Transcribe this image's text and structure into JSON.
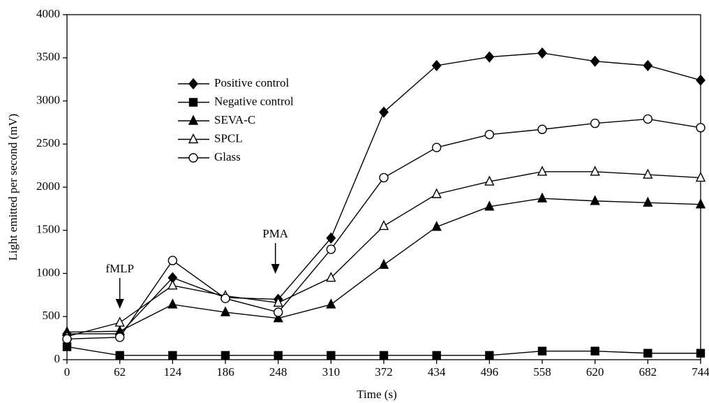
{
  "chart_data": {
    "type": "line",
    "x_label": "Time (s)",
    "y_label": "Light emitted per second (mV)",
    "x": [
      0,
      62,
      124,
      186,
      248,
      310,
      372,
      434,
      496,
      558,
      620,
      682,
      744
    ],
    "xlim": [
      0,
      744
    ],
    "xticks": [
      0,
      62,
      124,
      186,
      248,
      310,
      372,
      434,
      496,
      558,
      620,
      682,
      744
    ],
    "ylim": [
      0,
      4000
    ],
    "yticks": [
      0,
      500,
      1000,
      1500,
      2000,
      2500,
      3000,
      3500,
      4000
    ],
    "grid": false,
    "series": [
      {
        "name": "Positive control",
        "color": "#000000",
        "marker": "diamond",
        "values": [
          300,
          300,
          950,
          720,
          700,
          1410,
          2870,
          3410,
          3510,
          3555,
          3460,
          3410,
          3240
        ]
      },
      {
        "name": "Negative control",
        "color": "#000000",
        "marker": "square",
        "values": [
          150,
          50,
          50,
          50,
          50,
          50,
          50,
          50,
          50,
          100,
          100,
          75,
          75
        ]
      },
      {
        "name": "SEVA-C",
        "color": "#000000",
        "marker": "triangle",
        "values": [
          320,
          330,
          640,
          550,
          480,
          640,
          1100,
          1540,
          1775,
          1870,
          1840,
          1820,
          1800
        ]
      },
      {
        "name": "SPCL",
        "color": "#000000",
        "marker": "triangle-open",
        "values": [
          270,
          430,
          860,
          740,
          660,
          950,
          1550,
          1920,
          2065,
          2180,
          2180,
          2145,
          2110
        ]
      },
      {
        "name": "Glass",
        "color": "#000000",
        "marker": "circle-open",
        "values": [
          240,
          260,
          1150,
          710,
          550,
          1280,
          2110,
          2460,
          2610,
          2670,
          2740,
          2790,
          2690
        ]
      }
    ],
    "annotations": [
      {
        "text": "fMLP",
        "x": 62
      },
      {
        "text": "PMA",
        "x": 248
      }
    ]
  }
}
